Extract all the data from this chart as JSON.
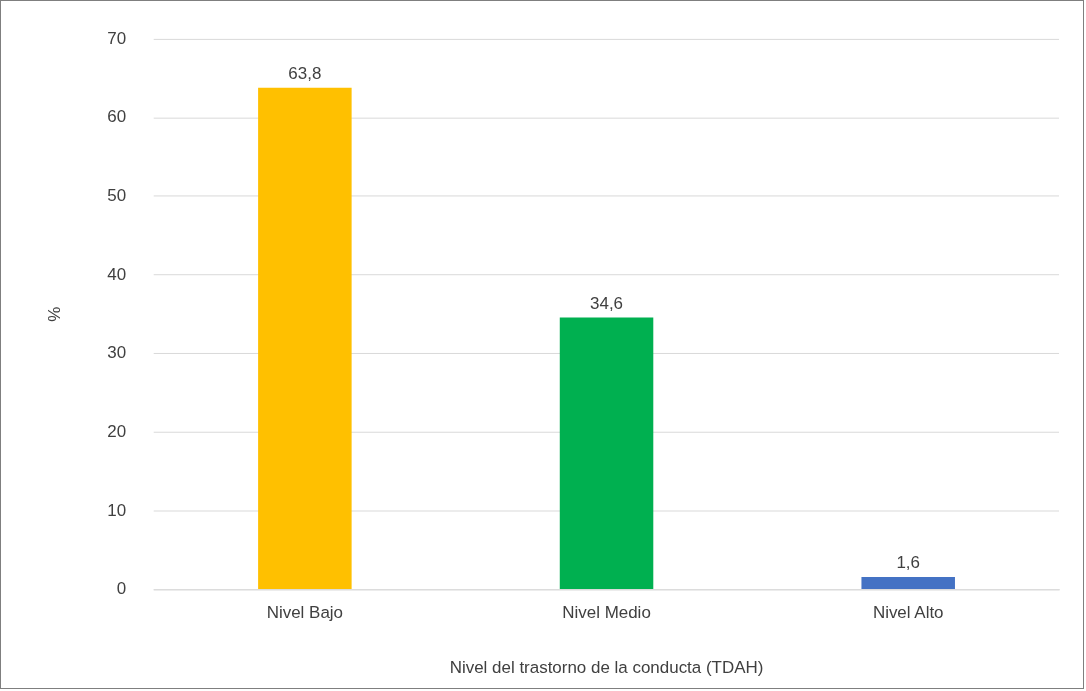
{
  "chart_data": {
    "type": "bar",
    "xlabel": "Nivel del trastorno de la conducta (TDAH)",
    "ylabel": "%",
    "categories": [
      "Nivel Bajo",
      "Nivel Medio",
      "Nivel Alto"
    ],
    "values": [
      63.8,
      34.6,
      1.6
    ],
    "colors": [
      "#ffc000",
      "#00b050",
      "#4472c4"
    ],
    "value_labels": [
      "63,8",
      "34,6",
      "1,6"
    ],
    "ylim": [
      0,
      70
    ],
    "yticks": [
      0,
      10,
      20,
      30,
      40,
      50,
      60,
      70
    ],
    "grid": "y",
    "legend": false
  }
}
